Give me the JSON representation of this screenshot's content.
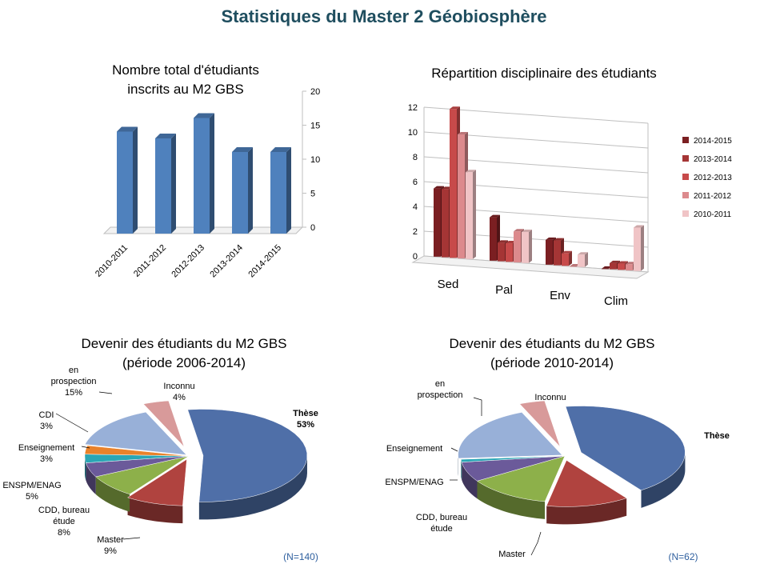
{
  "page": {
    "title": "Statistiques du Master 2 Géobiosphère"
  },
  "colors": {
    "title": "#1f4e5f",
    "bar_blue": "#4f81bd",
    "pie": [
      "#4f6fa8",
      "#b0433f",
      "#8db04a",
      "#6b5a9a",
      "#2aa6b5",
      "#e9822b",
      "#98b0d8",
      "#d89a9a"
    ]
  },
  "chart_data": [
    {
      "type": "bar",
      "title": "Nombre total d'étudiants",
      "subtitle": "inscrits au M2 GBS",
      "categories": [
        "2010-2011",
        "2011-2012",
        "2012-2013",
        "2013-2014",
        "2014-2015"
      ],
      "values": [
        15,
        14,
        17,
        12,
        12
      ],
      "ylim": [
        0,
        20
      ],
      "yticks": [
        "0",
        "5",
        "10",
        "15",
        "20"
      ],
      "color": "#4f81bd",
      "legend": "none"
    },
    {
      "type": "bar",
      "title": "Répartition disciplinaire des étudiants",
      "categories": [
        "Sed",
        "Pal",
        "Env",
        "Clim"
      ],
      "ylim": [
        0,
        12
      ],
      "yticks": [
        "0",
        "2",
        "4",
        "6",
        "8",
        "10",
        "12"
      ],
      "legend": "right",
      "series": [
        {
          "name": "2014-2015",
          "color": "#7b1f22",
          "values": [
            5.5,
            3.5,
            2,
            0
          ]
        },
        {
          "name": "2013-2014",
          "color": "#a53535",
          "values": [
            5.5,
            1.5,
            2,
            0.5
          ]
        },
        {
          "name": "2012-2013",
          "color": "#c74a4a",
          "values": [
            12,
            1.5,
            1,
            0.5
          ]
        },
        {
          "name": "2011-2012",
          "color": "#dc8a8d",
          "values": [
            10,
            2.5,
            0,
            0.5
          ]
        },
        {
          "name": "2010-2011",
          "color": "#f0c4c6",
          "values": [
            7,
            2.5,
            1,
            3.5
          ]
        }
      ]
    },
    {
      "type": "pie",
      "title": "Devenir des étudiants du M2 GBS",
      "subtitle": "(période 2006-2014)",
      "note": "(N=140)",
      "labels": [
        "Thèse",
        "Master",
        "CDD, bureau étude",
        "ENSPM/ENAG",
        "Enseignement",
        "CDI",
        "en prospection",
        "Inconnu"
      ],
      "values": [
        53,
        9,
        8,
        5,
        3,
        3,
        15,
        4
      ],
      "value_labels": [
        "53%",
        "9%",
        "8%",
        "5%",
        "3%",
        "3%",
        "15%",
        "4%"
      ]
    },
    {
      "type": "pie",
      "title": "Devenir des étudiants du M2 GBS",
      "subtitle": "(période 2010-2014)",
      "note": "(N=62)",
      "labels": [
        "Thèse",
        "Master",
        "CDD, bureau étude",
        "ENSPM/ENAG",
        "Enseignement",
        "en prospection",
        "Inconnu"
      ],
      "values": [
        43,
        13,
        13,
        7,
        1,
        20,
        4
      ]
    }
  ]
}
